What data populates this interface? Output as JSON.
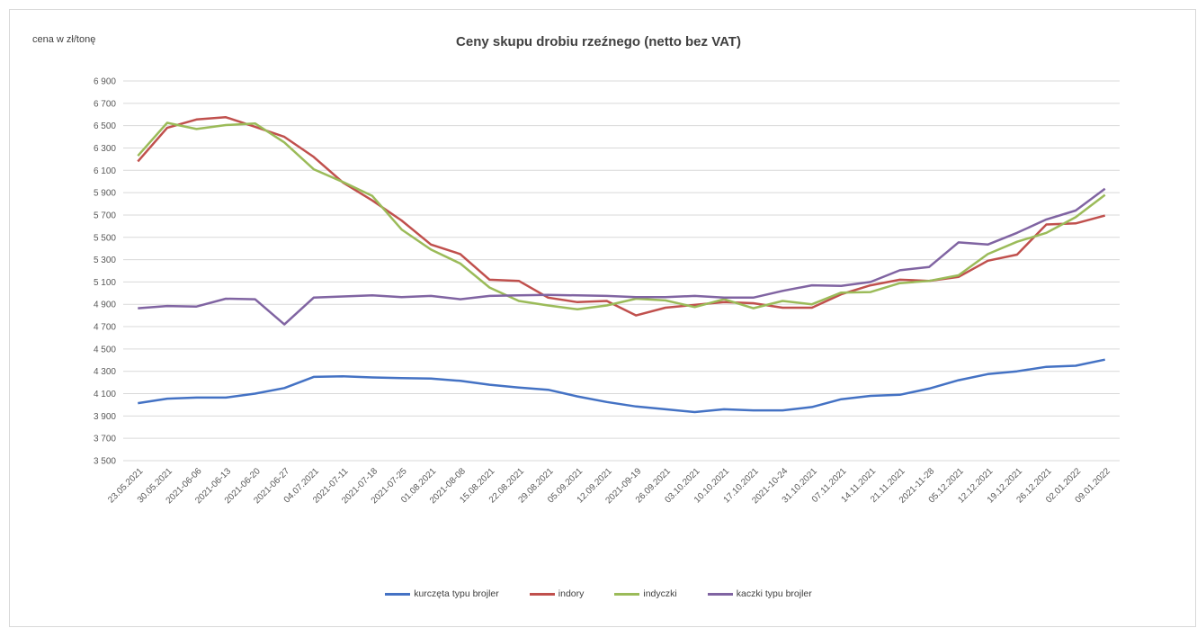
{
  "chart_data": {
    "type": "line",
    "title": "Ceny skupu drobiu rzeźnego (netto bez VAT)",
    "ylabel": "cena w zł/tonę",
    "ylim": [
      3500,
      6900
    ],
    "yticks": [
      3500,
      3700,
      3900,
      4100,
      4300,
      4500,
      4700,
      4900,
      5100,
      5300,
      5500,
      5700,
      5900,
      6100,
      6300,
      6500,
      6700,
      6900
    ],
    "ytick_labels": [
      "3 500",
      "3 700",
      "3 900",
      "4 100",
      "4 300",
      "4 500",
      "4 700",
      "4 900",
      "5 100",
      "5 300",
      "5 500",
      "5 700",
      "5 900",
      "6 100",
      "6 300",
      "6 500",
      "6 700",
      "6 900"
    ],
    "grid": true,
    "legend_position": "bottom",
    "categories": [
      "23.05.2021",
      "30.05.2021",
      "2021-06-06",
      "2021-06-13",
      "2021-06-20",
      "2021-06-27",
      "04.07.2021",
      "2021-07-11",
      "2021-07-18",
      "2021-07-25",
      "01.08.2021",
      "2021-08-08",
      "15.08.2021",
      "22.08.2021",
      "29.08.2021",
      "05.09.2021",
      "12.09.2021",
      "2021-09-19",
      "26.09.2021",
      "03.10.2021",
      "10.10.2021",
      "17.10.2021",
      "2021-10-24",
      "31.10.2021",
      "07.11.2021",
      "14.11.2021",
      "21.11.2021",
      "2021-11-28",
      "05.12.2021",
      "12.12.2021",
      "19.12.2021",
      "26.12.2021",
      "02.01.2022",
      "09.01.2022"
    ],
    "series": [
      {
        "name": "kurczęta typu brojler",
        "color": "#4472c4",
        "values": [
          4015,
          4055,
          4065,
          4065,
          4100,
          4150,
          4250,
          4255,
          4245,
          4240,
          4235,
          4215,
          4180,
          4155,
          4135,
          4075,
          4025,
          3985,
          3960,
          3935,
          3960,
          3950,
          3950,
          3980,
          4050,
          4080,
          4090,
          4145,
          4220,
          4275,
          4300,
          4340,
          4350,
          4405
        ]
      },
      {
        "name": "indory",
        "color": "#c0504d",
        "values": [
          6180,
          6480,
          6555,
          6575,
          6490,
          6400,
          6220,
          5990,
          5830,
          5650,
          5435,
          5350,
          5120,
          5110,
          4960,
          4920,
          4930,
          4800,
          4870,
          4895,
          4920,
          4910,
          4870,
          4870,
          4990,
          5070,
          5120,
          5110,
          5145,
          5290,
          5345,
          5615,
          5625,
          5695
        ]
      },
      {
        "name": "indyczki",
        "color": "#9bbb59",
        "values": [
          6230,
          6525,
          6470,
          6505,
          6520,
          6350,
          6110,
          5995,
          5870,
          5570,
          5390,
          5265,
          5050,
          4930,
          4890,
          4855,
          4890,
          4950,
          4935,
          4875,
          4945,
          4865,
          4930,
          4900,
          5005,
          5010,
          5090,
          5110,
          5160,
          5350,
          5460,
          5540,
          5680,
          5880
        ]
      },
      {
        "name": "kaczki typu brojler",
        "color": "#8064a2",
        "values": [
          4865,
          4885,
          4880,
          4950,
          4945,
          4720,
          4960,
          4970,
          4980,
          4965,
          4975,
          4945,
          4975,
          4980,
          4985,
          4980,
          4975,
          4965,
          4965,
          4975,
          4960,
          4960,
          5020,
          5070,
          5065,
          5100,
          5205,
          5235,
          5455,
          5435,
          5540,
          5660,
          5740,
          5935
        ]
      }
    ]
  }
}
